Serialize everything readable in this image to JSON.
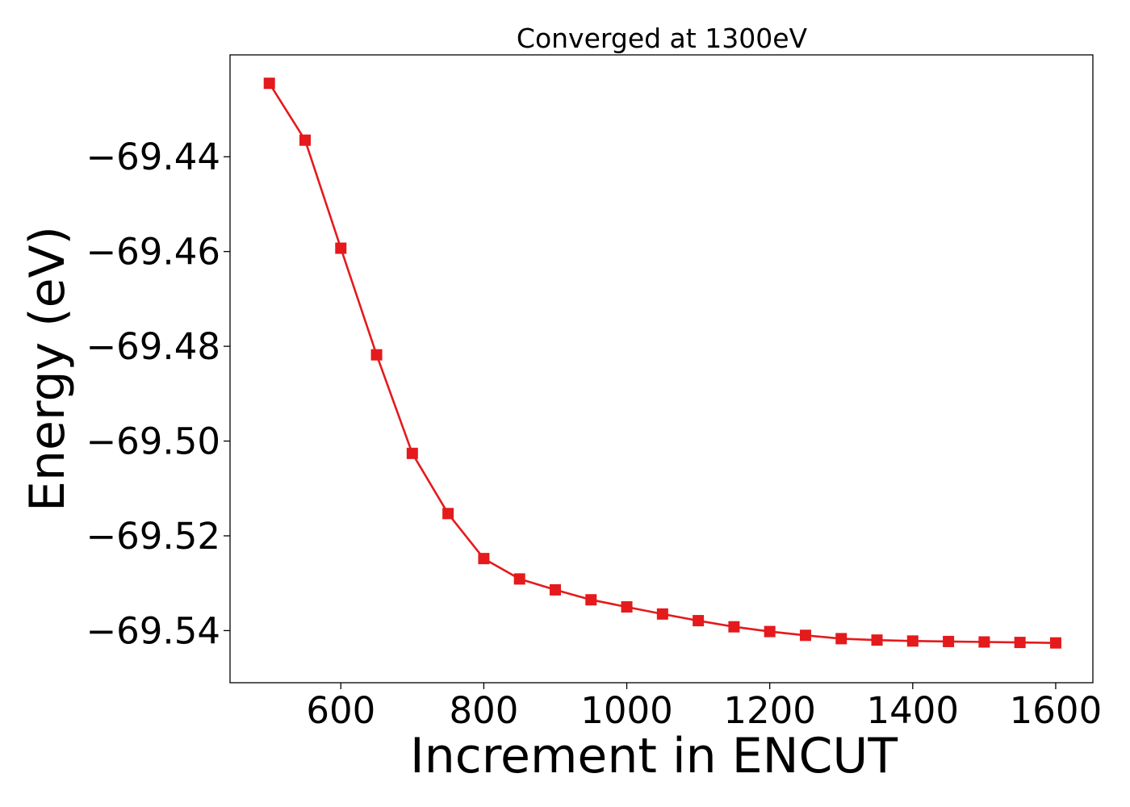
{
  "chart_data": {
    "type": "line",
    "title": "Converged at 1300eV",
    "xlabel": "Increment in ENCUT",
    "ylabel": "Energy (eV)",
    "xlim": [
      445,
      1652
    ],
    "ylim": [
      -69.551,
      -69.4185
    ],
    "xticks": [
      600,
      800,
      1000,
      1200,
      1400,
      1600
    ],
    "xtick_labels": [
      "600",
      "800",
      "1000",
      "1200",
      "1400",
      "1600"
    ],
    "yticks": [
      -69.44,
      -69.46,
      -69.48,
      -69.5,
      -69.52,
      -69.54
    ],
    "ytick_labels": [
      "−69.44",
      "−69.46",
      "−69.48",
      "−69.50",
      "−69.52",
      "−69.54"
    ],
    "grid": false,
    "series": [
      {
        "color": "#e41a1c",
        "marker": "square",
        "x": [
          500,
          550,
          600,
          650,
          700,
          750,
          800,
          850,
          900,
          950,
          1000,
          1050,
          1100,
          1150,
          1200,
          1250,
          1300,
          1350,
          1400,
          1450,
          1500,
          1550,
          1600
        ],
        "y": [
          -69.4245,
          -69.4365,
          -69.4593,
          -69.4818,
          -69.5026,
          -69.5153,
          -69.5248,
          -69.5291,
          -69.5314,
          -69.5335,
          -69.535,
          -69.5365,
          -69.5379,
          -69.5392,
          -69.5402,
          -69.541,
          -69.5417,
          -69.542,
          -69.5422,
          -69.5423,
          -69.5424,
          -69.5425,
          -69.5426
        ]
      }
    ]
  }
}
